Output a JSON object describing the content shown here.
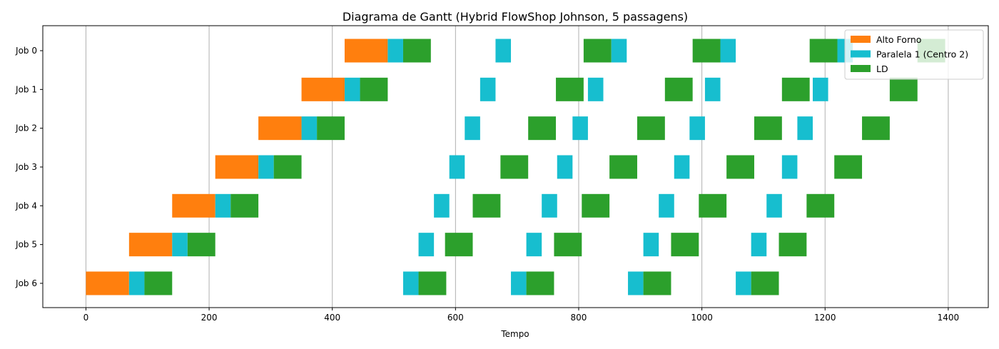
{
  "chart_data": {
    "type": "gantt",
    "title": "Diagrama de Gantt (Hybrid FlowShop Johnson, 5 passagens)",
    "xlabel": "Tempo",
    "ylabel": "",
    "xlim": [
      -70,
      1465
    ],
    "xticks": [
      0,
      200,
      400,
      600,
      800,
      1000,
      1200,
      1400
    ],
    "x_grid": true,
    "legend_position": "top-right",
    "jobs": [
      "Job 0",
      "Job 1",
      "Job 2",
      "Job 3",
      "Job 4",
      "Job 5",
      "Job 6"
    ],
    "series": [
      {
        "name": "Alto Forno",
        "color": "#ff7f0e"
      },
      {
        "name": "Paralela 1 (Centro 2)",
        "color": "#17becf"
      },
      {
        "name": "LD",
        "color": "#2ca02c"
      }
    ],
    "tasks": [
      {
        "job": "Job 0",
        "series": "Alto Forno",
        "start": 420,
        "end": 490
      },
      {
        "job": "Job 0",
        "series": "Paralela 1 (Centro 2)",
        "start": 490,
        "end": 515
      },
      {
        "job": "Job 0",
        "series": "LD",
        "start": 515,
        "end": 560
      },
      {
        "job": "Job 0",
        "series": "Paralela 1 (Centro 2)",
        "start": 665,
        "end": 690
      },
      {
        "job": "Job 0",
        "series": "LD",
        "start": 808,
        "end": 853
      },
      {
        "job": "Job 0",
        "series": "Paralela 1 (Centro 2)",
        "start": 853,
        "end": 878
      },
      {
        "job": "Job 0",
        "series": "LD",
        "start": 985,
        "end": 1030
      },
      {
        "job": "Job 0",
        "series": "Paralela 1 (Centro 2)",
        "start": 1030,
        "end": 1055
      },
      {
        "job": "Job 0",
        "series": "LD",
        "start": 1175,
        "end": 1220
      },
      {
        "job": "Job 0",
        "series": "Paralela 1 (Centro 2)",
        "start": 1220,
        "end": 1245
      },
      {
        "job": "Job 0",
        "series": "LD",
        "start": 1350,
        "end": 1395
      },
      {
        "job": "Job 1",
        "series": "Alto Forno",
        "start": 350,
        "end": 420
      },
      {
        "job": "Job 1",
        "series": "Paralela 1 (Centro 2)",
        "start": 420,
        "end": 445
      },
      {
        "job": "Job 1",
        "series": "LD",
        "start": 445,
        "end": 490
      },
      {
        "job": "Job 1",
        "series": "Paralela 1 (Centro 2)",
        "start": 640,
        "end": 665
      },
      {
        "job": "Job 1",
        "series": "LD",
        "start": 763,
        "end": 808
      },
      {
        "job": "Job 1",
        "series": "Paralela 1 (Centro 2)",
        "start": 815,
        "end": 840
      },
      {
        "job": "Job 1",
        "series": "LD",
        "start": 940,
        "end": 985
      },
      {
        "job": "Job 1",
        "series": "Paralela 1 (Centro 2)",
        "start": 1005,
        "end": 1030
      },
      {
        "job": "Job 1",
        "series": "LD",
        "start": 1130,
        "end": 1175
      },
      {
        "job": "Job 1",
        "series": "Paralela 1 (Centro 2)",
        "start": 1180,
        "end": 1205
      },
      {
        "job": "Job 1",
        "series": "LD",
        "start": 1305,
        "end": 1350
      },
      {
        "job": "Job 2",
        "series": "Alto Forno",
        "start": 280,
        "end": 350
      },
      {
        "job": "Job 2",
        "series": "Paralela 1 (Centro 2)",
        "start": 350,
        "end": 375
      },
      {
        "job": "Job 2",
        "series": "LD",
        "start": 375,
        "end": 420
      },
      {
        "job": "Job 2",
        "series": "Paralela 1 (Centro 2)",
        "start": 615,
        "end": 640
      },
      {
        "job": "Job 2",
        "series": "LD",
        "start": 718,
        "end": 763
      },
      {
        "job": "Job 2",
        "series": "Paralela 1 (Centro 2)",
        "start": 790,
        "end": 815
      },
      {
        "job": "Job 2",
        "series": "LD",
        "start": 895,
        "end": 940
      },
      {
        "job": "Job 2",
        "series": "Paralela 1 (Centro 2)",
        "start": 980,
        "end": 1005
      },
      {
        "job": "Job 2",
        "series": "LD",
        "start": 1085,
        "end": 1130
      },
      {
        "job": "Job 2",
        "series": "Paralela 1 (Centro 2)",
        "start": 1155,
        "end": 1180
      },
      {
        "job": "Job 2",
        "series": "LD",
        "start": 1260,
        "end": 1305
      },
      {
        "job": "Job 3",
        "series": "Alto Forno",
        "start": 210,
        "end": 280
      },
      {
        "job": "Job 3",
        "series": "Paralela 1 (Centro 2)",
        "start": 280,
        "end": 305
      },
      {
        "job": "Job 3",
        "series": "LD",
        "start": 305,
        "end": 350
      },
      {
        "job": "Job 3",
        "series": "Paralela 1 (Centro 2)",
        "start": 590,
        "end": 615
      },
      {
        "job": "Job 3",
        "series": "LD",
        "start": 673,
        "end": 718
      },
      {
        "job": "Job 3",
        "series": "Paralela 1 (Centro 2)",
        "start": 765,
        "end": 790
      },
      {
        "job": "Job 3",
        "series": "LD",
        "start": 850,
        "end": 895
      },
      {
        "job": "Job 3",
        "series": "Paralela 1 (Centro 2)",
        "start": 955,
        "end": 980
      },
      {
        "job": "Job 3",
        "series": "LD",
        "start": 1040,
        "end": 1085
      },
      {
        "job": "Job 3",
        "series": "Paralela 1 (Centro 2)",
        "start": 1130,
        "end": 1155
      },
      {
        "job": "Job 3",
        "series": "LD",
        "start": 1215,
        "end": 1260
      },
      {
        "job": "Job 4",
        "series": "Alto Forno",
        "start": 140,
        "end": 210
      },
      {
        "job": "Job 4",
        "series": "Paralela 1 (Centro 2)",
        "start": 210,
        "end": 235
      },
      {
        "job": "Job 4",
        "series": "LD",
        "start": 235,
        "end": 280
      },
      {
        "job": "Job 4",
        "series": "Paralela 1 (Centro 2)",
        "start": 565,
        "end": 590
      },
      {
        "job": "Job 4",
        "series": "LD",
        "start": 628,
        "end": 673
      },
      {
        "job": "Job 4",
        "series": "Paralela 1 (Centro 2)",
        "start": 740,
        "end": 765
      },
      {
        "job": "Job 4",
        "series": "LD",
        "start": 805,
        "end": 850
      },
      {
        "job": "Job 4",
        "series": "Paralela 1 (Centro 2)",
        "start": 930,
        "end": 955
      },
      {
        "job": "Job 4",
        "series": "LD",
        "start": 995,
        "end": 1040
      },
      {
        "job": "Job 4",
        "series": "Paralela 1 (Centro 2)",
        "start": 1105,
        "end": 1130
      },
      {
        "job": "Job 4",
        "series": "LD",
        "start": 1170,
        "end": 1215
      },
      {
        "job": "Job 5",
        "series": "Alto Forno",
        "start": 70,
        "end": 140
      },
      {
        "job": "Job 5",
        "series": "Paralela 1 (Centro 2)",
        "start": 140,
        "end": 165
      },
      {
        "job": "Job 5",
        "series": "LD",
        "start": 165,
        "end": 210
      },
      {
        "job": "Job 5",
        "series": "Paralela 1 (Centro 2)",
        "start": 540,
        "end": 565
      },
      {
        "job": "Job 5",
        "series": "LD",
        "start": 583,
        "end": 628
      },
      {
        "job": "Job 5",
        "series": "Paralela 1 (Centro 2)",
        "start": 715,
        "end": 740
      },
      {
        "job": "Job 5",
        "series": "LD",
        "start": 760,
        "end": 805
      },
      {
        "job": "Job 5",
        "series": "Paralela 1 (Centro 2)",
        "start": 905,
        "end": 930
      },
      {
        "job": "Job 5",
        "series": "LD",
        "start": 950,
        "end": 995
      },
      {
        "job": "Job 5",
        "series": "Paralela 1 (Centro 2)",
        "start": 1080,
        "end": 1105
      },
      {
        "job": "Job 5",
        "series": "LD",
        "start": 1125,
        "end": 1170
      },
      {
        "job": "Job 6",
        "series": "Alto Forno",
        "start": 0,
        "end": 70
      },
      {
        "job": "Job 6",
        "series": "Paralela 1 (Centro 2)",
        "start": 70,
        "end": 95
      },
      {
        "job": "Job 6",
        "series": "LD",
        "start": 95,
        "end": 140
      },
      {
        "job": "Job 6",
        "series": "Paralela 1 (Centro 2)",
        "start": 515,
        "end": 540
      },
      {
        "job": "Job 6",
        "series": "LD",
        "start": 540,
        "end": 585
      },
      {
        "job": "Job 6",
        "series": "Paralela 1 (Centro 2)",
        "start": 690,
        "end": 715
      },
      {
        "job": "Job 6",
        "series": "LD",
        "start": 715,
        "end": 760
      },
      {
        "job": "Job 6",
        "series": "Paralela 1 (Centro 2)",
        "start": 880,
        "end": 905
      },
      {
        "job": "Job 6",
        "series": "LD",
        "start": 905,
        "end": 950
      },
      {
        "job": "Job 6",
        "series": "Paralela 1 (Centro 2)",
        "start": 1055,
        "end": 1080
      },
      {
        "job": "Job 6",
        "series": "LD",
        "start": 1080,
        "end": 1125
      }
    ]
  }
}
